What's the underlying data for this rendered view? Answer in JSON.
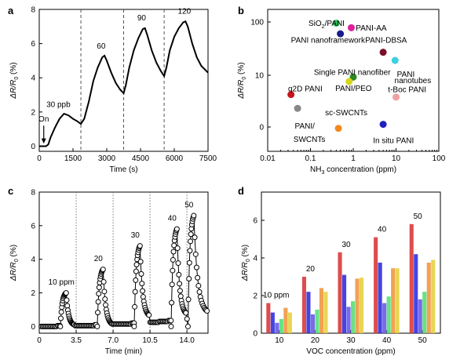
{
  "chart_data": [
    {
      "panel": "a",
      "type": "line",
      "xlabel": "Time (s)",
      "ylabel_parts": [
        "ΔR/R",
        "0",
        " (%)"
      ],
      "xlim": [
        0,
        7500
      ],
      "ylim": [
        -0.3,
        8.0
      ],
      "xticks": [
        0,
        1500,
        3000,
        4500,
        6000,
        7500
      ],
      "yticks": [
        0,
        2,
        4,
        6,
        8
      ],
      "dashed_lines_x": [
        1850,
        3750,
        5550
      ],
      "x": [
        0,
        300,
        400,
        500,
        700,
        900,
        1100,
        1300,
        1500,
        1700,
        1850,
        2000,
        2200,
        2400,
        2600,
        2800,
        2900,
        3000,
        3200,
        3400,
        3600,
        3750,
        3850,
        4000,
        4200,
        4400,
        4600,
        4700,
        4800,
        5000,
        5200,
        5400,
        5550,
        5650,
        5800,
        6000,
        6200,
        6400,
        6500,
        6600,
        6800,
        7000,
        7200,
        7500
      ],
      "y": [
        0,
        0,
        0.1,
        0.5,
        1.1,
        1.6,
        1.9,
        1.8,
        1.6,
        1.45,
        1.3,
        1.6,
        2.6,
        3.8,
        4.6,
        5.2,
        5.3,
        5.0,
        4.3,
        3.7,
        3.3,
        3.1,
        3.6,
        4.6,
        5.6,
        6.3,
        6.85,
        6.9,
        6.5,
        5.6,
        4.9,
        4.4,
        4.1,
        4.6,
        5.6,
        6.4,
        6.9,
        7.25,
        7.3,
        7.0,
        6.0,
        5.2,
        4.7,
        4.3
      ],
      "annotations": [
        {
          "text": "On",
          "x": 200,
          "y": 1.45
        },
        {
          "text": "30 ppb",
          "x": 850,
          "y": 2.3
        },
        {
          "text": "60",
          "x": 2750,
          "y": 5.7
        },
        {
          "text": "90",
          "x": 4550,
          "y": 7.35
        },
        {
          "text": "120",
          "x": 6450,
          "y": 7.75
        }
      ],
      "color": "#000000"
    },
    {
      "panel": "b",
      "type": "scatter",
      "xscale": "log",
      "xlabel_parts": [
        "NH",
        "3",
        " concentration (ppm)"
      ],
      "ylabel_parts": [
        "ΔR/R",
        "0",
        " (%)"
      ],
      "xlim": [
        0.01,
        100
      ],
      "xticks": [
        0.01,
        0.1,
        1,
        10,
        100
      ],
      "xtick_labels": [
        "0.01",
        "0.1",
        "1",
        "10",
        "100"
      ],
      "ytick_labels": [
        "0",
        "10",
        "100"
      ],
      "points": [
        {
          "label_parts": [
            "SiO",
            "2",
            "/PANI"
          ],
          "x": 0.4,
          "y": 95,
          "color": "#2ec45a",
          "label_color": "#2ec45a",
          "label_x": 0.09,
          "label_y": 95
        },
        {
          "label_parts": [
            "PANI-AA",
            "",
            ""
          ],
          "x": 0.9,
          "y": 78,
          "color": "#e0209a",
          "label_color": "#e0209a",
          "label_x": 1.15,
          "label_y": 78
        },
        {
          "label_parts": [
            "PANI nanoframework",
            "",
            ""
          ],
          "x": 0.5,
          "y": 60,
          "color": "#1a1a8c",
          "label_color": "#1a1a8c",
          "label_x": 0.035,
          "label_y": 46
        },
        {
          "label_parts": [
            "PANI-DBSA",
            "",
            ""
          ],
          "x": 5,
          "y": 27,
          "color": "#7a0f2a",
          "label_color": "#7a0f2a",
          "label_x": 1.9,
          "label_y": 46
        },
        {
          "label_parts": [
            "PANI",
            "",
            ""
          ],
          "x": 9.5,
          "y": 19,
          "color": "#3cd0e0",
          "label_color": "#3cd0e0",
          "label_x": 10.5,
          "label_y": 10.5
        },
        {
          "label_parts": [
            "nanotubes",
            "",
            ""
          ],
          "x": 9.5,
          "y": 19,
          "color": "none",
          "label_color": "#3cd0e0",
          "label_x": 9.2,
          "label_y": 6.3
        },
        {
          "label_parts": [
            "Single PANI nanofiber",
            "",
            ""
          ],
          "x": 1.0,
          "y": 8.5,
          "color": "#2a8a20",
          "label_color": "#2a8a20",
          "label_x": 0.12,
          "label_y": 11.5
        },
        {
          "label_parts": [
            "PANI/PEO",
            "",
            ""
          ],
          "x": 0.8,
          "y": 5.6,
          "color": "#d6d61a",
          "label_color": "#c9a400",
          "label_x": 0.38,
          "label_y": 3.1
        },
        {
          "label_parts": [
            "q2D PANI",
            "",
            ""
          ],
          "x": 0.035,
          "y": 1.7,
          "color": "#c4141a",
          "label_color": "#c4141a",
          "label_x": 0.03,
          "label_y": 2.9
        },
        {
          "label_parts": [
            "t-Boc PANI",
            "",
            ""
          ],
          "x": 10,
          "y": 1.35,
          "color": "#f0a0a0",
          "label_color": "#ee8585",
          "label_x": 6.5,
          "label_y": 2.7
        },
        {
          "label_parts": [
            "PANI/",
            "",
            ""
          ],
          "x": 0.05,
          "y": 0.7,
          "color": "#888888",
          "label_color": "#555555",
          "label_x": 0.043,
          "label_y": 0.05
        },
        {
          "label_parts": [
            "SWCNTs",
            "",
            ""
          ],
          "x": 0.05,
          "y": 0.7,
          "color": "none",
          "label_color": "#555555",
          "label_x": 0.04,
          "label_y": -0.45
        },
        {
          "label_parts": [
            "sc-SWCNTs",
            "",
            ""
          ],
          "x": 0.45,
          "y": -0.05,
          "color": "#f08a20",
          "label_color": "#f08a20",
          "label_x": 0.22,
          "label_y": 0.55
        },
        {
          "label_parts": [
            "In situ PANI",
            "",
            ""
          ],
          "x": 5,
          "y": 0.1,
          "color": "#2020c0",
          "label_color": "#2020c0",
          "label_x": 2.9,
          "label_y": -0.5
        }
      ]
    },
    {
      "panel": "c",
      "type": "scatter",
      "xlabel": "Time (min)",
      "ylabel_parts": [
        "ΔR/R",
        "0",
        " (%)"
      ],
      "xlim": [
        0,
        16
      ],
      "ylim": [
        -0.4,
        8
      ],
      "xticks": [
        0,
        3.5,
        7.0,
        10.5,
        14.0
      ],
      "xtick_labels": [
        "0",
        "3.5",
        "7.0",
        "10.5",
        "14.0"
      ],
      "yticks": [
        0,
        2,
        4,
        6,
        8
      ],
      "dotted_lines_x": [
        3.5,
        7.0,
        10.5,
        14.0
      ],
      "cycles": [
        {
          "label": "10 ppm",
          "start": 2.0,
          "end": 3.3,
          "peak": 2.0
        },
        {
          "label": "20",
          "start": 5.5,
          "end": 6.9,
          "peak": 3.4
        },
        {
          "label": "30",
          "start": 9.0,
          "end": 10.4,
          "peak": 4.8
        },
        {
          "label": "40",
          "start": 12.5,
          "end": 13.9,
          "peak": 5.8
        },
        {
          "label": "50",
          "start": 14.1,
          "end": 15.9,
          "peak": 6.6
        }
      ],
      "marker": "open-circle"
    },
    {
      "panel": "d",
      "type": "bar",
      "xlabel": "VOC concentration (ppm)",
      "ylabel_parts": [
        "ΔR/R",
        "0",
        " (%)"
      ],
      "categories": [
        "10",
        "20",
        "30",
        "40",
        "50"
      ],
      "ylim": [
        0,
        7.5
      ],
      "yticks": [
        0,
        2,
        4,
        6
      ],
      "series": [
        {
          "color": "#d93a3a",
          "values": [
            1.6,
            3.0,
            4.3,
            5.1,
            5.8
          ]
        },
        {
          "color": "#3030e0",
          "values": [
            1.1,
            2.2,
            3.1,
            3.75,
            4.2
          ]
        },
        {
          "color": "#6a5ae8",
          "values": [
            0.55,
            1.0,
            1.4,
            1.6,
            1.8
          ]
        },
        {
          "color": "#55e075",
          "values": [
            0.75,
            1.25,
            1.7,
            1.95,
            2.2
          ]
        },
        {
          "color": "#f09840",
          "values": [
            1.35,
            2.4,
            2.9,
            3.45,
            3.75
          ]
        },
        {
          "color": "#e8d040",
          "values": [
            1.1,
            2.2,
            2.95,
            3.45,
            3.9
          ]
        }
      ],
      "category_labels": [
        {
          "text": "10 ppm",
          "category": 0
        },
        {
          "text": "20",
          "category": 1
        },
        {
          "text": "30",
          "category": 2
        },
        {
          "text": "40",
          "category": 3
        },
        {
          "text": "50",
          "category": 4
        }
      ]
    }
  ],
  "panel_letters": [
    "a",
    "b",
    "c",
    "d"
  ]
}
